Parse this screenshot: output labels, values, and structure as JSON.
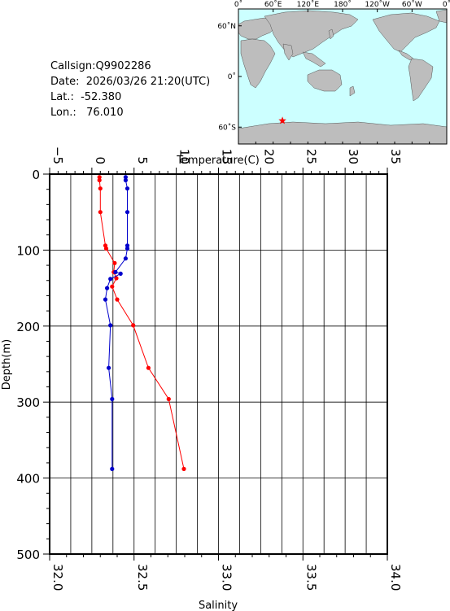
{
  "station": {
    "callsign": "Callsign:Q9902286",
    "date": "Date:  2026/03/26 21:20(UTC)",
    "lat": "Lat.:  -52.380",
    "lon": "Lon.:   76.010"
  },
  "map": {
    "top_labels": [
      "0˚",
      "60˚E",
      "120˚E",
      "180˚",
      "120˚W",
      "60˚W",
      "0˚"
    ],
    "left_labels": [
      "60˚N",
      "0˚",
      "60˚S"
    ],
    "station_lon": 76.01,
    "station_lat": -52.38,
    "colors": {
      "ocean": "#ccffff",
      "land": "#bdbdbd",
      "marker": "#ff0000"
    }
  },
  "chart_data": {
    "type": "line",
    "ylabel": "Depth(m)",
    "ylim": [
      0,
      500
    ],
    "yticks": [
      "0",
      "100",
      "200",
      "300",
      "400",
      "500"
    ],
    "grid": true,
    "top_axis": {
      "label": "Temperature(C)",
      "range": [
        -5,
        35
      ],
      "ticks": [
        "−5",
        "0",
        "5",
        "10",
        "15",
        "20",
        "25",
        "30",
        "35"
      ]
    },
    "bottom_axis": {
      "label": "Salinity",
      "range": [
        32.0,
        34.0
      ],
      "ticks": [
        "32.0",
        "32.5",
        "33.0",
        "33.5",
        "34.0"
      ]
    },
    "series": [
      {
        "axis": "temperature",
        "color": "#ff0000",
        "points": [
          [
            0.9,
            4
          ],
          [
            0.9,
            8
          ],
          [
            1.0,
            19
          ],
          [
            1.0,
            50
          ],
          [
            1.6,
            94
          ],
          [
            1.7,
            98
          ],
          [
            2.7,
            117
          ],
          [
            2.6,
            129
          ],
          [
            2.9,
            137
          ],
          [
            2.4,
            148
          ],
          [
            3.0,
            165
          ],
          [
            4.9,
            199
          ],
          [
            6.7,
            255
          ],
          [
            9.1,
            296
          ],
          [
            10.9,
            388
          ]
        ]
      },
      {
        "axis": "salinity",
        "color": "#0000cc",
        "points": [
          [
            32.45,
            4
          ],
          [
            32.45,
            8
          ],
          [
            32.46,
            19
          ],
          [
            32.46,
            50
          ],
          [
            32.46,
            94
          ],
          [
            32.46,
            98
          ],
          [
            32.45,
            111
          ],
          [
            32.39,
            129
          ],
          [
            32.42,
            131
          ],
          [
            32.36,
            138
          ],
          [
            32.34,
            150
          ],
          [
            32.33,
            165
          ],
          [
            32.36,
            199
          ],
          [
            32.35,
            255
          ],
          [
            32.37,
            296
          ],
          [
            32.37,
            388
          ]
        ]
      }
    ]
  }
}
